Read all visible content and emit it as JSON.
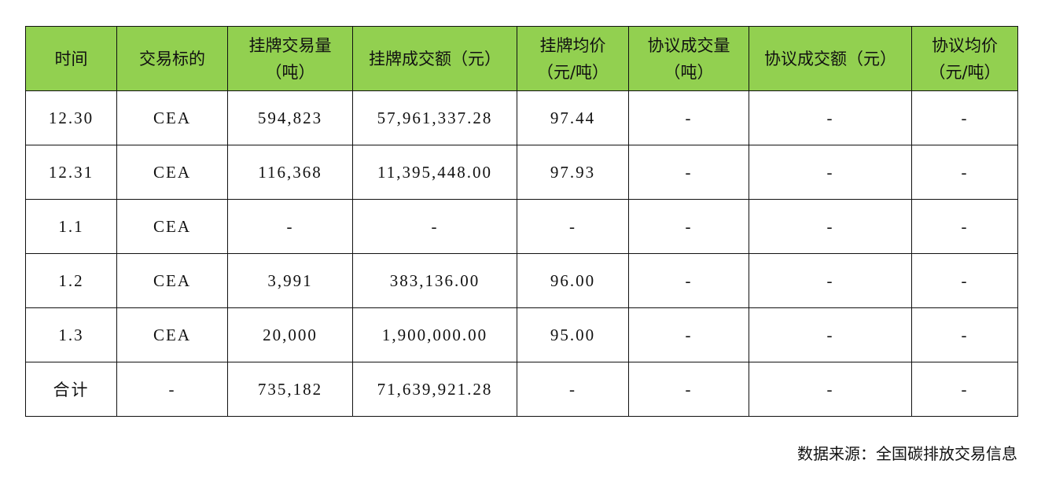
{
  "table": {
    "headers": [
      {
        "line1": "时间",
        "line2": ""
      },
      {
        "line1": "交易标的",
        "line2": ""
      },
      {
        "line1": "挂牌交易量",
        "line2": "（吨）"
      },
      {
        "line1": "挂牌成交额（元）",
        "line2": ""
      },
      {
        "line1": "挂牌均价",
        "line2": "（元/吨）"
      },
      {
        "line1": "协议成交量",
        "line2": "（吨）"
      },
      {
        "line1": "协议成交额（元）",
        "line2": ""
      },
      {
        "line1": "协议均价",
        "line2": "（元/吨）"
      }
    ],
    "rows": [
      [
        "12.30",
        "CEA",
        "594,823",
        "57,961,337.28",
        "97.44",
        "-",
        "-",
        "-"
      ],
      [
        "12.31",
        "CEA",
        "116,368",
        "11,395,448.00",
        "97.93",
        "-",
        "-",
        "-"
      ],
      [
        "1.1",
        "CEA",
        "-",
        "-",
        "-",
        "-",
        "-",
        "-"
      ],
      [
        "1.2",
        "CEA",
        "3,991",
        "383,136.00",
        "96.00",
        "-",
        "-",
        "-"
      ],
      [
        "1.3",
        "CEA",
        "20,000",
        "1,900,000.00",
        "95.00",
        "-",
        "-",
        "-"
      ],
      [
        "合计",
        "-",
        "735,182",
        "71,639,921.28",
        "-",
        "-",
        "-",
        "-"
      ]
    ]
  },
  "source": "数据来源：全国碳排放交易信息",
  "colors": {
    "header_bg": "#92D050",
    "border": "#111111"
  }
}
